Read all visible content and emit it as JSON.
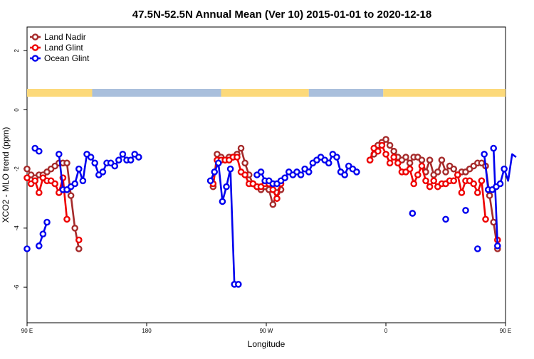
{
  "chart_data": {
    "type": "line",
    "title": "47.5N-52.5N Annual Mean (Ver 10)   2015-01-01 to 2020-12-18",
    "xlabel": "Longitude",
    "ylabel": "XCO2 - MLO trend (ppm)",
    "xlim": [
      90,
      450
    ],
    "ylim": [
      -7.2,
      2.8
    ],
    "x_ticks": [
      {
        "value": 90,
        "label": "90 E"
      },
      {
        "value": 180,
        "label": "180"
      },
      {
        "value": 270,
        "label": "90 W"
      },
      {
        "value": 360,
        "label": "0"
      },
      {
        "value": 450,
        "label": "90 E"
      },
      {
        "value": 540,
        "label": "180"
      }
    ],
    "y_ticks": [
      {
        "value": 2,
        "label": "2"
      },
      {
        "value": 0,
        "label": "0"
      },
      {
        "value": -2,
        "label": "-2"
      },
      {
        "value": -4,
        "label": "-4"
      },
      {
        "value": -6,
        "label": "-6"
      }
    ],
    "land_ocean_bar": {
      "land_color": "#fcd97a",
      "ocean_color": "#a9bfdc",
      "segments": [
        {
          "type": "land",
          "from": 90,
          "to": 139
        },
        {
          "type": "ocean",
          "from": 139,
          "to": 236
        },
        {
          "type": "land",
          "from": 236,
          "to": 302
        },
        {
          "type": "ocean",
          "from": 302,
          "to": 358
        },
        {
          "type": "land",
          "from": 358,
          "to": 490
        },
        {
          "type": "ocean",
          "from": 490,
          "to": 540
        }
      ]
    },
    "legend": {
      "position": "top-left"
    },
    "series": [
      {
        "name": "Land Nadir",
        "color": "#a52a2a",
        "segments": [
          [
            [
              90,
              -2.0
            ],
            [
              93,
              -2.2
            ],
            [
              96,
              -2.3
            ],
            [
              99,
              -2.2
            ],
            [
              102,
              -2.2
            ],
            [
              105,
              -2.1
            ],
            [
              108,
              -2.0
            ],
            [
              111,
              -1.9
            ],
            [
              114,
              -1.8
            ],
            [
              117,
              -1.8
            ],
            [
              120,
              -1.8
            ],
            [
              123,
              -2.9
            ],
            [
              126,
              -4.0
            ],
            [
              129,
              -4.7
            ]
          ],
          [
            [
              230,
              -2.6
            ],
            [
              233,
              -1.5
            ],
            [
              236,
              -1.6
            ],
            [
              239,
              -1.7
            ],
            [
              242,
              -1.6
            ],
            [
              245,
              -1.6
            ],
            [
              248,
              -1.5
            ],
            [
              251,
              -1.3
            ],
            [
              254,
              -1.8
            ],
            [
              257,
              -2.2
            ],
            [
              260,
              -2.5
            ],
            [
              263,
              -2.6
            ],
            [
              266,
              -2.7
            ],
            [
              269,
              -2.6
            ],
            [
              272,
              -2.7
            ],
            [
              275,
              -3.2
            ],
            [
              278,
              -2.8
            ],
            [
              281,
              -2.7
            ]
          ],
          [
            [
              348,
              -1.7
            ],
            [
              351,
              -1.5
            ],
            [
              354,
              -1.2
            ],
            [
              357,
              -1.1
            ],
            [
              360,
              -1.0
            ],
            [
              363,
              -1.2
            ],
            [
              366,
              -1.4
            ],
            [
              369,
              -1.6
            ],
            [
              372,
              -1.7
            ],
            [
              375,
              -1.6
            ],
            [
              378,
              -1.8
            ],
            [
              381,
              -1.6
            ],
            [
              384,
              -1.6
            ],
            [
              387,
              -1.7
            ],
            [
              390,
              -2.1
            ],
            [
              393,
              -1.7
            ],
            [
              396,
              -2.2
            ],
            [
              399,
              -2.1
            ],
            [
              402,
              -1.7
            ],
            [
              405,
              -2.1
            ],
            [
              408,
              -1.9
            ],
            [
              411,
              -2.0
            ],
            [
              414,
              -2.2
            ],
            [
              417,
              -2.1
            ],
            [
              420,
              -2.1
            ],
            [
              423,
              -2.0
            ],
            [
              426,
              -1.9
            ],
            [
              429,
              -1.8
            ],
            [
              432,
              -1.8
            ],
            [
              435,
              -1.9
            ],
            [
              438,
              -2.9
            ],
            [
              441,
              -3.8
            ],
            [
              444,
              -4.7
            ]
          ]
        ]
      },
      {
        "name": "Land Glint",
        "color": "#ee0000",
        "segments": [
          [
            [
              90,
              -2.3
            ],
            [
              93,
              -2.5
            ],
            [
              96,
              -2.4
            ],
            [
              99,
              -2.8
            ],
            [
              102,
              -2.3
            ],
            [
              105,
              -2.4
            ],
            [
              108,
              -2.4
            ],
            [
              111,
              -2.5
            ],
            [
              114,
              -2.8
            ],
            [
              117,
              -2.3
            ],
            [
              120,
              -3.7
            ]
          ],
          [
            [
              129,
              -4.4
            ]
          ],
          [
            [
              230,
              -2.5
            ],
            [
              233,
              -1.7
            ],
            [
              236,
              -1.7
            ],
            [
              239,
              -1.7
            ],
            [
              242,
              -1.7
            ],
            [
              245,
              -1.6
            ],
            [
              248,
              -1.6
            ],
            [
              251,
              -2.1
            ],
            [
              254,
              -2.2
            ],
            [
              257,
              -2.5
            ],
            [
              260,
              -2.5
            ],
            [
              263,
              -2.6
            ],
            [
              266,
              -2.6
            ],
            [
              269,
              -2.5
            ],
            [
              272,
              -2.5
            ],
            [
              275,
              -2.7
            ],
            [
              278,
              -3.0
            ],
            [
              281,
              -2.5
            ]
          ],
          [
            [
              348,
              -1.7
            ],
            [
              351,
              -1.3
            ],
            [
              354,
              -1.4
            ],
            [
              357,
              -1.2
            ],
            [
              360,
              -1.5
            ],
            [
              363,
              -1.8
            ],
            [
              366,
              -1.6
            ],
            [
              369,
              -1.8
            ],
            [
              372,
              -2.1
            ],
            [
              375,
              -2.1
            ],
            [
              378,
              -2.0
            ],
            [
              381,
              -2.5
            ],
            [
              384,
              -2.2
            ],
            [
              387,
              -1.9
            ],
            [
              390,
              -2.4
            ],
            [
              393,
              -2.6
            ],
            [
              396,
              -2.4
            ],
            [
              399,
              -2.6
            ],
            [
              402,
              -2.5
            ],
            [
              405,
              -2.5
            ],
            [
              408,
              -2.4
            ],
            [
              411,
              -2.4
            ],
            [
              414,
              -2.2
            ],
            [
              417,
              -2.8
            ],
            [
              420,
              -2.4
            ],
            [
              423,
              -2.4
            ],
            [
              426,
              -2.5
            ],
            [
              429,
              -2.8
            ],
            [
              432,
              -2.4
            ],
            [
              435,
              -3.7
            ]
          ],
          [
            [
              444,
              -4.4
            ]
          ]
        ]
      },
      {
        "name": "Ocean Glint",
        "color": "#0000ee",
        "segments": [
          [
            [
              90,
              -4.7
            ]
          ],
          [
            [
              99,
              -4.6
            ],
            [
              102,
              -4.2
            ],
            [
              105,
              -3.8
            ]
          ],
          [
            [
              228,
              -2.4
            ],
            [
              231,
              -2.1
            ],
            [
              234,
              -1.8
            ],
            [
              237,
              -3.1
            ],
            [
              240,
              -2.6
            ],
            [
              243,
              -2.0
            ],
            [
              246,
              -5.9
            ],
            [
              249,
              -5.9
            ]
          ],
          [
            [
              263,
              -2.2
            ],
            [
              266,
              -2.1
            ],
            [
              269,
              -2.4
            ],
            [
              272,
              -2.4
            ],
            [
              275,
              -2.5
            ],
            [
              278,
              -2.5
            ],
            [
              281,
              -2.4
            ],
            [
              284,
              -2.3
            ],
            [
              287,
              -2.1
            ],
            [
              290,
              -2.2
            ],
            [
              293,
              -2.1
            ],
            [
              296,
              -2.2
            ],
            [
              299,
              -2.0
            ],
            [
              302,
              -2.1
            ],
            [
              305,
              -1.8
            ],
            [
              308,
              -1.7
            ],
            [
              311,
              -1.6
            ],
            [
              314,
              -1.7
            ],
            [
              317,
              -1.8
            ],
            [
              320,
              -1.5
            ],
            [
              323,
              -1.6
            ],
            [
              326,
              -2.1
            ],
            [
              329,
              -2.2
            ],
            [
              332,
              -1.9
            ],
            [
              335,
              -2.0
            ],
            [
              338,
              -2.1
            ]
          ],
          [
            [
              96,
              -1.3
            ],
            [
              99,
              -1.4
            ]
          ],
          [
            [
              114,
              -1.5
            ],
            [
              117,
              -2.7
            ],
            [
              120,
              -2.7
            ],
            [
              123,
              -2.6
            ],
            [
              126,
              -2.5
            ],
            [
              129,
              -2.0
            ],
            [
              132,
              -2.4
            ],
            [
              135,
              -1.5
            ],
            [
              138,
              -1.6
            ],
            [
              141,
              -1.8
            ],
            [
              144,
              -2.2
            ],
            [
              147,
              -2.1
            ],
            [
              150,
              -1.8
            ],
            [
              153,
              -1.8
            ],
            [
              156,
              -1.9
            ],
            [
              159,
              -1.7
            ],
            [
              162,
              -1.5
            ],
            [
              165,
              -1.7
            ],
            [
              168,
              -1.7
            ],
            [
              171,
              -1.5
            ],
            [
              174,
              -1.6
            ]
          ],
          [
            [
              380,
              -3.5
            ]
          ],
          [
            [
              405,
              -3.7
            ]
          ],
          [
            [
              420,
              -3.4
            ]
          ],
          [
            [
              429,
              -4.7
            ]
          ],
          [
            [
              441,
              -1.3
            ],
            [
              444,
              -4.6
            ]
          ],
          [
            [
              453,
              -3.8
            ]
          ],
          [
            [
              434,
              -1.5
            ],
            [
              437,
              -2.7
            ],
            [
              440,
              -2.7
            ],
            [
              443,
              -2.6
            ],
            [
              446,
              -2.5
            ],
            [
              449,
              -2.0
            ],
            [
              452,
              -2.4
            ],
            [
              455,
              -1.5
            ],
            [
              458,
              -1.6
            ]
          ]
        ]
      }
    ]
  }
}
